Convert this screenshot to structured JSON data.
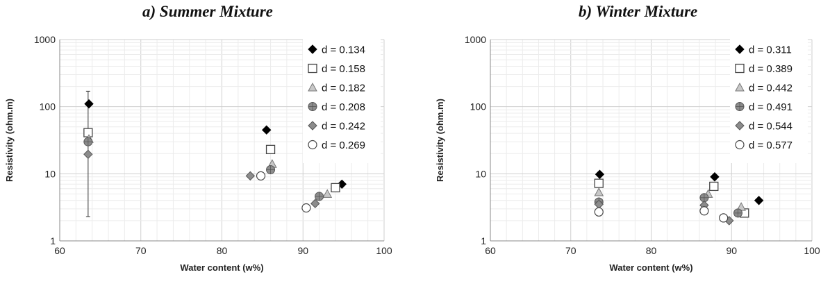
{
  "chart_data": [
    {
      "type": "scatter",
      "title": "a)   Summer Mixture",
      "xlabel": "Water content (w%)",
      "ylabel": "Resistivity (ohm.m)",
      "xlim": [
        60,
        100
      ],
      "ylim": [
        1,
        1000
      ],
      "yscale": "log",
      "x_ticks": [
        "60",
        "70",
        "80",
        "90",
        "100"
      ],
      "y_ticks": [
        "1",
        "10",
        "100",
        "1000"
      ],
      "grid": true,
      "legend_position": "top-right",
      "series": [
        {
          "name": "d = 0.134",
          "marker": "diamond-black",
          "points": [
            {
              "x": 63.6,
              "y": 110
            },
            {
              "x": 85.5,
              "y": 45
            },
            {
              "x": 94.8,
              "y": 7
            }
          ]
        },
        {
          "name": "d = 0.158",
          "marker": "square-open",
          "points": [
            {
              "x": 63.5,
              "y": 41
            },
            {
              "x": 86.0,
              "y": 23
            },
            {
              "x": 94.0,
              "y": 6.2
            }
          ]
        },
        {
          "name": "d = 0.182",
          "marker": "triangle-grey",
          "points": [
            {
              "x": 63.6,
              "y": 33
            },
            {
              "x": 86.2,
              "y": 14
            },
            {
              "x": 93.0,
              "y": 5
            }
          ]
        },
        {
          "name": "d = 0.208",
          "marker": "circle-grey",
          "points": [
            {
              "x": 63.5,
              "y": 30,
              "err": [
                2.3,
                170
              ]
            },
            {
              "x": 86.0,
              "y": 11.5
            },
            {
              "x": 92.0,
              "y": 4.6
            }
          ]
        },
        {
          "name": "d = 0.242",
          "marker": "diamond-grey",
          "points": [
            {
              "x": 63.5,
              "y": 19.5
            },
            {
              "x": 83.5,
              "y": 9.3
            },
            {
              "x": 91.5,
              "y": 3.6
            }
          ]
        },
        {
          "name": "d = 0.269",
          "marker": "circle-open",
          "points": [
            {
              "x": 84.8,
              "y": 9.3
            },
            {
              "x": 90.4,
              "y": 3.1
            }
          ]
        }
      ]
    },
    {
      "type": "scatter",
      "title": "b)   Winter Mixture",
      "xlabel": "Water content (w%)",
      "ylabel": "Resistivity (ohm.m)",
      "xlim": [
        60,
        100
      ],
      "ylim": [
        1,
        1000
      ],
      "yscale": "log",
      "x_ticks": [
        "60",
        "70",
        "80",
        "90",
        "100"
      ],
      "y_ticks": [
        "1",
        "10",
        "100",
        "1000"
      ],
      "grid": true,
      "legend_position": "top-right",
      "series": [
        {
          "name": "d = 0.311",
          "marker": "diamond-black",
          "points": [
            {
              "x": 73.6,
              "y": 9.8
            },
            {
              "x": 87.9,
              "y": 9
            },
            {
              "x": 93.4,
              "y": 4
            }
          ]
        },
        {
          "name": "d = 0.389",
          "marker": "square-open",
          "points": [
            {
              "x": 73.5,
              "y": 7.2
            },
            {
              "x": 87.8,
              "y": 6.5
            },
            {
              "x": 91.6,
              "y": 2.6
            }
          ]
        },
        {
          "name": "d = 0.442",
          "marker": "triangle-grey",
          "points": [
            {
              "x": 73.5,
              "y": 5.3
            },
            {
              "x": 87.1,
              "y": 5
            },
            {
              "x": 91.2,
              "y": 3.2
            }
          ]
        },
        {
          "name": "d = 0.491",
          "marker": "circle-grey",
          "points": [
            {
              "x": 73.5,
              "y": 3.8
            },
            {
              "x": 86.6,
              "y": 4.4
            },
            {
              "x": 90.8,
              "y": 2.6
            }
          ]
        },
        {
          "name": "d = 0.544",
          "marker": "diamond-grey",
          "points": [
            {
              "x": 73.5,
              "y": 3.5
            },
            {
              "x": 86.6,
              "y": 3.4
            },
            {
              "x": 89.7,
              "y": 2
            }
          ]
        },
        {
          "name": "d = 0.577",
          "marker": "circle-open",
          "points": [
            {
              "x": 73.5,
              "y": 2.7
            },
            {
              "x": 86.6,
              "y": 2.8
            },
            {
              "x": 89.0,
              "y": 2.2
            }
          ]
        }
      ]
    }
  ]
}
